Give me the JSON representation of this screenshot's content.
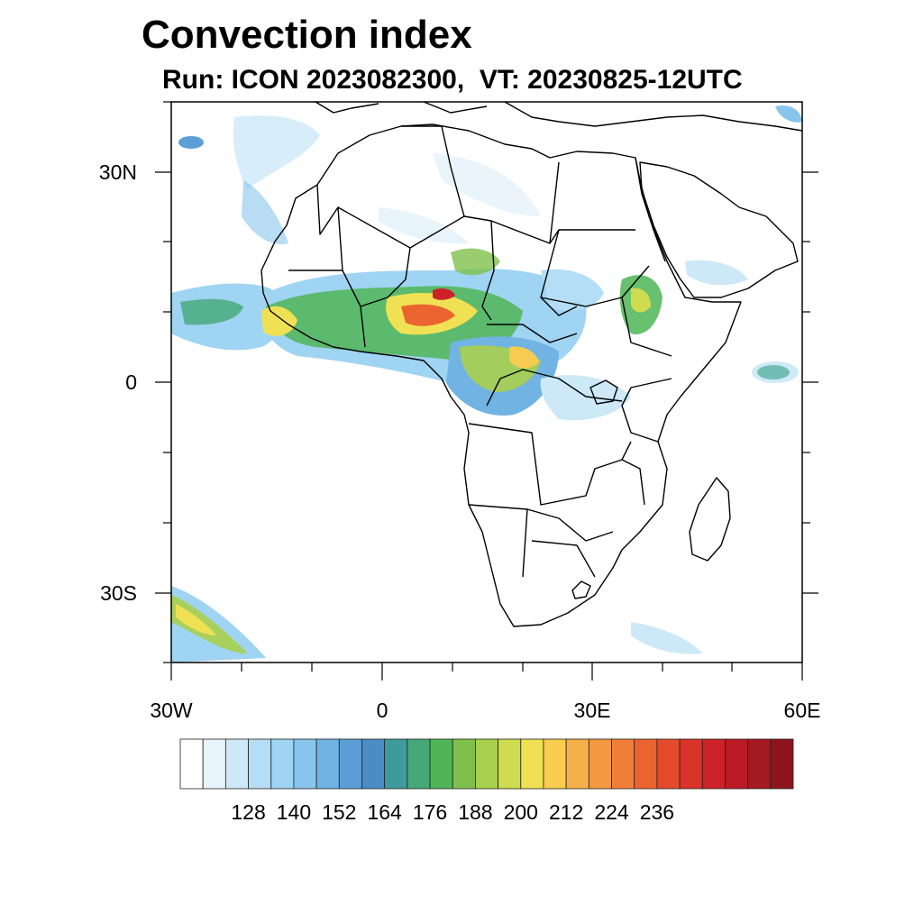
{
  "map": {
    "title": "Convection index",
    "subtitle": "Run: ICON 2023082300,  VT: 20230825-12UTC",
    "lat_labels": [
      "30N",
      "0",
      "30S"
    ],
    "lon_labels": [
      "30W",
      "0",
      "30E",
      "60E"
    ],
    "extent": {
      "lon_min": -30,
      "lon_max": 60,
      "lat_min": -40,
      "lat_max": 40
    }
  },
  "colorbar": {
    "tick_labels": [
      "128",
      "140",
      "152",
      "164",
      "176",
      "188",
      "200",
      "212",
      "224",
      "236"
    ],
    "colors": [
      "#ffffff",
      "#e8f4fb",
      "#cde9f7",
      "#b3def5",
      "#9fd4f2",
      "#87c5ec",
      "#71b3e3",
      "#5c9fd6",
      "#4a8dc4",
      "#3f9a9c",
      "#44a877",
      "#4fb556",
      "#7fc04c",
      "#a8cf4d",
      "#cfdc50",
      "#f0e154",
      "#f8cc50",
      "#f6b04a",
      "#f49841",
      "#f07e38",
      "#eb6430",
      "#e44a2c",
      "#da3329",
      "#cc2228",
      "#b91c25",
      "#a51922",
      "#8d141c"
    ]
  }
}
